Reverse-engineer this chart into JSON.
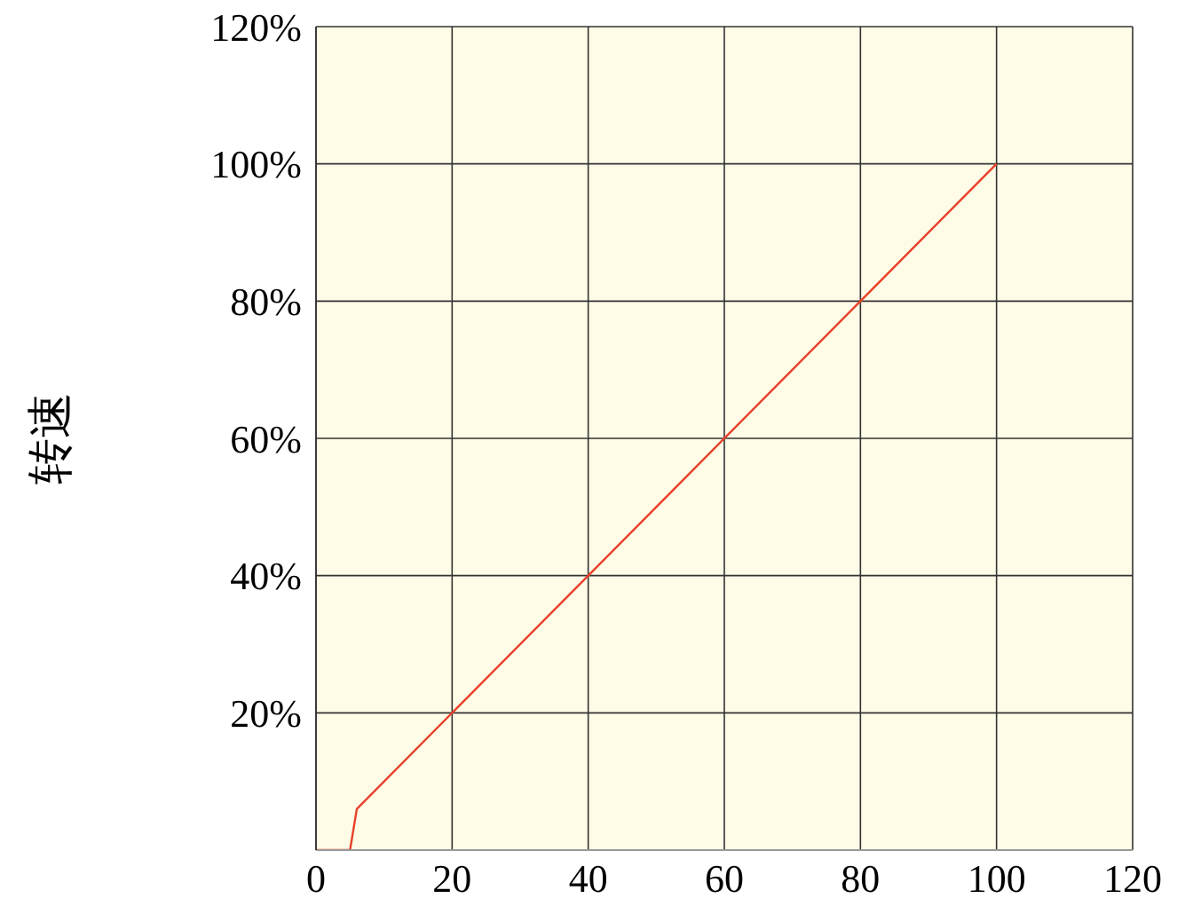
{
  "chart_data": {
    "type": "line",
    "ylabel": "转速",
    "x": [
      0,
      5,
      6,
      100
    ],
    "series": [
      {
        "color": "#e8402a",
        "values": [
          0,
          0,
          6,
          100
        ]
      }
    ],
    "xlim": [
      0,
      120
    ],
    "xticks": [
      0,
      20,
      40,
      60,
      80,
      100,
      120
    ],
    "ylim": [
      0,
      120
    ],
    "yticks": [
      {
        "value": 0,
        "label": null
      },
      {
        "value": 20,
        "label": "20%"
      },
      {
        "value": 40,
        "label": "40%"
      },
      {
        "value": 60,
        "label": "60%"
      },
      {
        "value": 80,
        "label": "80%"
      },
      {
        "value": 100,
        "label": "100%"
      },
      {
        "value": 120,
        "label": "120%"
      }
    ],
    "grid": true,
    "legend": false,
    "marker": "none",
    "line_style": "solid"
  }
}
